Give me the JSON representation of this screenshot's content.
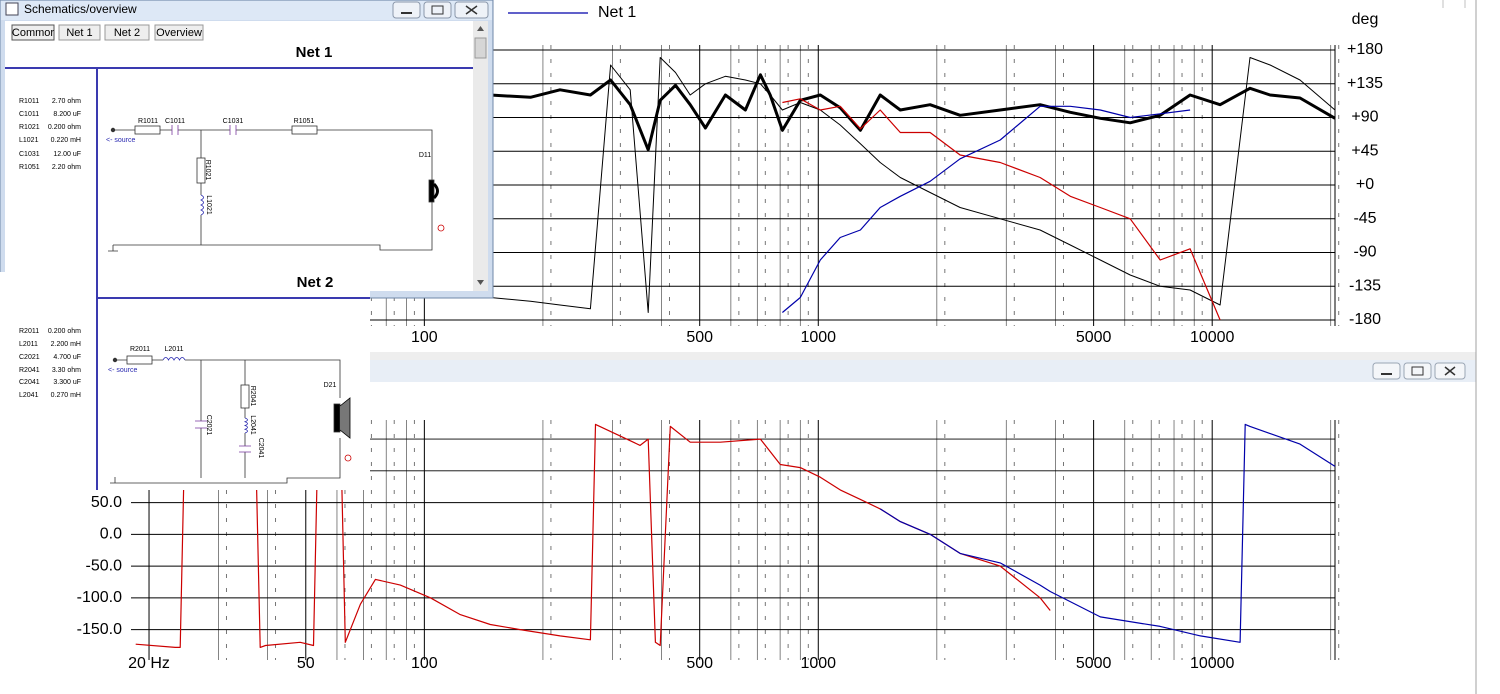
{
  "schematic_window": {
    "title": "Schematics/overview",
    "buttons": [
      "Commor",
      "Net 1",
      "Net 2",
      "Overview"
    ],
    "nets": [
      {
        "heading": "Net 1",
        "source": "<- source",
        "driver": "D11",
        "components": [
          {
            "name": "R1011",
            "value": "2.70 ohm"
          },
          {
            "name": "C1011",
            "value": "8.200 uF"
          },
          {
            "name": "R1021",
            "value": "0.200 ohm"
          },
          {
            "name": "L1021",
            "value": "0.220 mH"
          },
          {
            "name": "C1031",
            "value": "12.00 uF"
          },
          {
            "name": "R1051",
            "value": "2.20 ohm"
          }
        ]
      },
      {
        "heading": "Net 2",
        "source": "<- source",
        "driver": "D21",
        "components": [
          {
            "name": "R2011",
            "value": "0.200 ohm"
          },
          {
            "name": "L2011",
            "value": "2.200 mH"
          },
          {
            "name": "C2021",
            "value": "4.700 uF"
          },
          {
            "name": "R2041",
            "value": "3.30 ohm"
          },
          {
            "name": "C2041",
            "value": "3.300 uF"
          },
          {
            "name": "L2041",
            "value": "0.270 mH"
          }
        ]
      }
    ]
  },
  "chart_data": [
    {
      "type": "line",
      "y_label": "deg",
      "log_x": true,
      "grid": true,
      "legend": "top-left",
      "xlim": [
        18,
        20500
      ],
      "ylim": [
        -180,
        180
      ],
      "xticks": [
        100,
        500,
        1000,
        5000,
        10000
      ],
      "yticks": [
        {
          "value": 180,
          "label": "+180"
        },
        {
          "value": 135,
          "label": "+135"
        },
        {
          "value": 90,
          "label": "+90"
        },
        {
          "value": 45,
          "label": "+45"
        },
        {
          "value": 0,
          "label": "+0"
        },
        -45,
        -90,
        -135,
        -180
      ],
      "x": [
        147,
        186,
        221,
        264,
        297,
        333,
        370,
        397,
        434,
        473,
        517,
        581,
        653,
        713,
        755,
        811,
        900,
        1012,
        1137,
        1279,
        1436,
        1615,
        1923,
        2291,
        2897,
        3656,
        4363,
        5199,
        6194,
        7379,
        8790,
        10471,
        12474,
        14025,
        16711,
        20500
      ],
      "series": [
        {
          "color": "#000000",
          "line_width": 3,
          "values": [
            120,
            117,
            127,
            120,
            140,
            107,
            47,
            113,
            133,
            107,
            76,
            120,
            100,
            147,
            120,
            73,
            113,
            120,
            103,
            73,
            120,
            100,
            107,
            93,
            100,
            107,
            97,
            89,
            83,
            93,
            120,
            107,
            129,
            120,
            116,
            89
          ]
        },
        {
          "color": "#000000",
          "line_width": 1,
          "values": [
            -150,
            -155,
            -160,
            -165,
            160,
            127,
            -170,
            170,
            150,
            120,
            135,
            145,
            140,
            135,
            120,
            100,
            110,
            100,
            80,
            55,
            30,
            10,
            -10,
            -30,
            -45,
            -60,
            -80,
            -100,
            -120,
            -135,
            -140,
            -160,
            170,
            160,
            140,
            100
          ]
        },
        {
          "color": "#cc0000",
          "line_width": 1.2,
          "values": [
            null,
            null,
            null,
            null,
            null,
            null,
            null,
            null,
            null,
            null,
            null,
            null,
            null,
            null,
            null,
            110,
            115,
            100,
            105,
            75,
            100,
            70,
            70,
            40,
            30,
            10,
            -15,
            -30,
            -45,
            -100,
            -85,
            -180,
            null,
            null,
            null,
            null
          ]
        },
        {
          "name": "Net 1",
          "color": "#0000aa",
          "line_width": 1.2,
          "values": [
            null,
            null,
            null,
            null,
            null,
            null,
            null,
            null,
            null,
            null,
            null,
            null,
            null,
            null,
            null,
            -170,
            -150,
            -100,
            -70,
            -60,
            -30,
            -15,
            5,
            35,
            60,
            105,
            105,
            100,
            90,
            95,
            100,
            null,
            null,
            null,
            null,
            null
          ]
        }
      ]
    },
    {
      "type": "line",
      "log_x": true,
      "grid": true,
      "xlim": [
        18,
        20500
      ],
      "ylim": [
        -190,
        180
      ],
      "xticks": [
        {
          "value": 20,
          "label": "20 Hz"
        },
        50,
        100,
        500,
        1000,
        5000,
        10000
      ],
      "yticks": [
        {
          "value": 50,
          "label": "50.0"
        },
        {
          "value": 0,
          "label": "0.0"
        },
        {
          "value": -50,
          "label": "-50.0"
        },
        {
          "value": -100,
          "label": "-100.0"
        },
        {
          "value": -150,
          "label": "-150.0"
        }
      ],
      "x": [
        18.5,
        23.3,
        24.0,
        24.7,
        37.2,
        38.3,
        39.5,
        48.4,
        52.3,
        53.8,
        61.2,
        63.0,
        68.8,
        75.1,
        86.9,
        103.6,
        123,
        147,
        175,
        221,
        264,
        272,
        353,
        370,
        386,
        397,
        421,
        473,
        564,
        713,
        801,
        900,
        1012,
        1137,
        1279,
        1436,
        1615,
        1923,
        2291,
        2897,
        3656,
        3880,
        5199,
        7379,
        9333,
        11770,
        12130,
        12474,
        16711,
        20500
      ],
      "series": [
        {
          "color": "#cc0000",
          "line_width": 1.2,
          "values": [
            -173,
            -178,
            -178,
            180,
            170,
            -178,
            -175,
            -170,
            -175,
            180,
            180,
            -170,
            -110,
            -71,
            -80,
            -100,
            -126,
            -142,
            -150,
            -160,
            -166,
            173,
            140,
            150,
            -170,
            -175,
            170,
            145,
            145,
            150,
            110,
            105,
            90,
            70,
            55,
            40,
            20,
            0,
            -30,
            -50,
            -100,
            -120,
            null,
            null,
            null,
            null,
            null,
            null,
            null,
            null
          ]
        },
        {
          "color": "#0000aa",
          "line_width": 1.2,
          "values": [
            null,
            null,
            null,
            null,
            null,
            null,
            null,
            null,
            null,
            null,
            null,
            null,
            null,
            null,
            null,
            null,
            null,
            null,
            null,
            null,
            null,
            null,
            null,
            null,
            null,
            null,
            null,
            null,
            null,
            null,
            null,
            null,
            null,
            null,
            null,
            40,
            20,
            0,
            -30,
            -45,
            -80,
            -90,
            -130,
            -145,
            -160,
            -170,
            173,
            170,
            142,
            107
          ]
        }
      ]
    }
  ]
}
